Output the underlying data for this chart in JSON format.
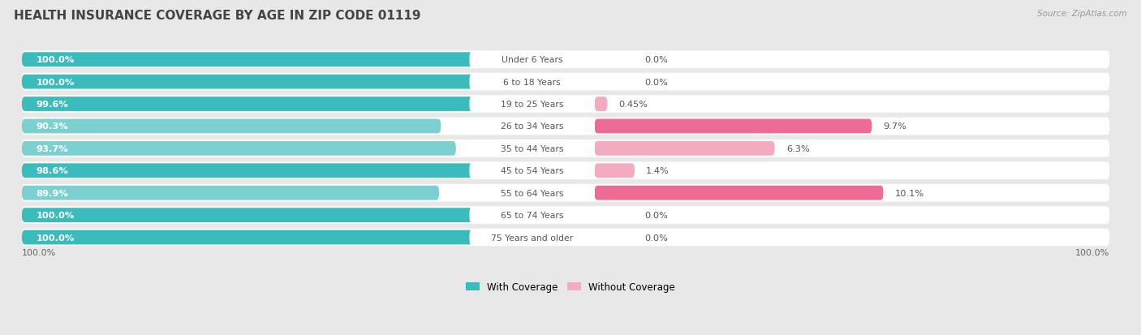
{
  "title": "HEALTH INSURANCE COVERAGE BY AGE IN ZIP CODE 01119",
  "source": "Source: ZipAtlas.com",
  "categories": [
    "Under 6 Years",
    "6 to 18 Years",
    "19 to 25 Years",
    "26 to 34 Years",
    "35 to 44 Years",
    "45 to 54 Years",
    "55 to 64 Years",
    "65 to 74 Years",
    "75 Years and older"
  ],
  "with_coverage": [
    100.0,
    100.0,
    99.6,
    90.3,
    93.7,
    98.6,
    89.9,
    100.0,
    100.0
  ],
  "without_coverage": [
    0.0,
    0.0,
    0.45,
    9.7,
    6.3,
    1.4,
    10.1,
    0.0,
    0.0
  ],
  "with_labels": [
    "100.0%",
    "100.0%",
    "99.6%",
    "90.3%",
    "93.7%",
    "98.6%",
    "89.9%",
    "100.0%",
    "100.0%"
  ],
  "without_labels": [
    "0.0%",
    "0.0%",
    "0.45%",
    "9.7%",
    "6.3%",
    "1.4%",
    "10.1%",
    "0.0%",
    "0.0%"
  ],
  "color_with_dark": "#3BBCBC",
  "color_with_light": "#7DD0D0",
  "color_without_dark": "#EE6B96",
  "color_without_light": "#F4AABF",
  "bg_color": "#e8e8e8",
  "row_bg": "#ffffff",
  "title_fontsize": 11,
  "legend_label_with": "With Coverage",
  "legend_label_without": "Without Coverage",
  "x_left_label": "100.0%",
  "x_right_label": "100.0%"
}
